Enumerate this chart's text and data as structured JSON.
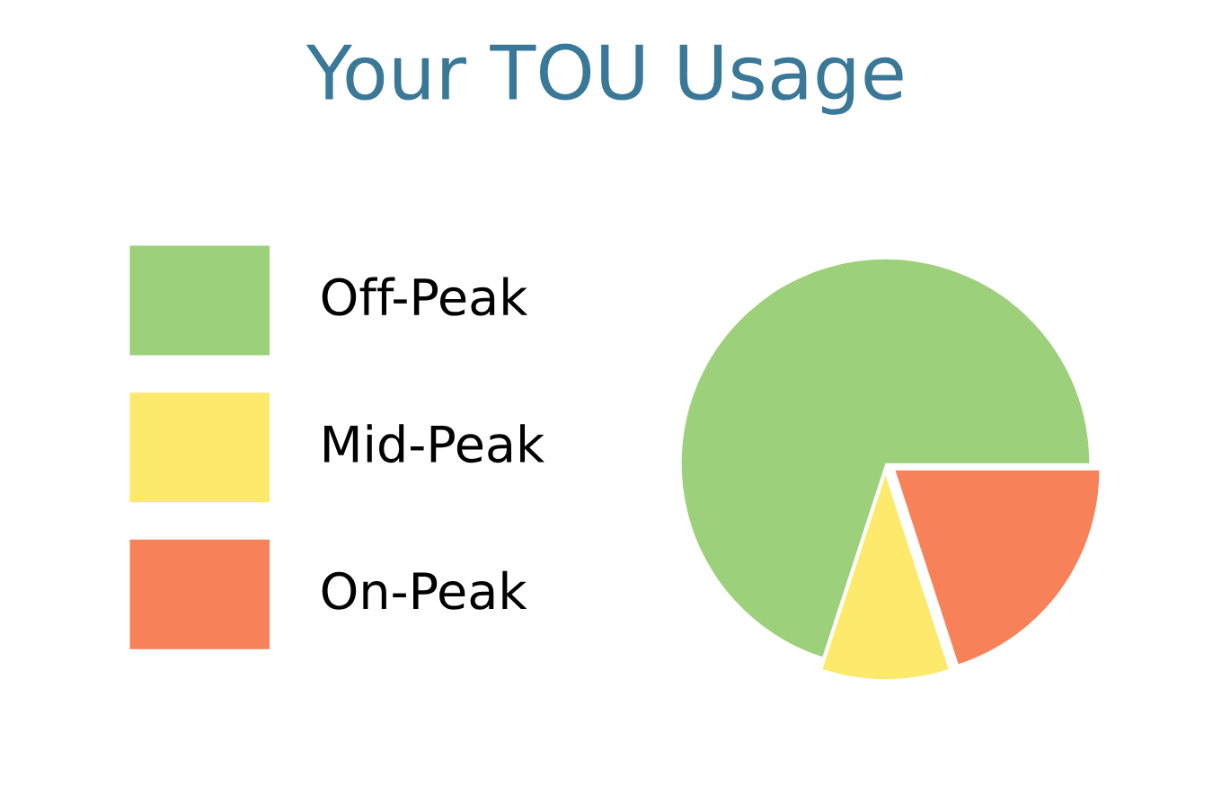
{
  "chart_data": {
    "type": "pie",
    "title": "Your TOU Usage",
    "categories": [
      "Off-Peak",
      "Mid-Peak",
      "On-Peak"
    ],
    "values": [
      70,
      10,
      20
    ],
    "colors": [
      "#9dd07a",
      "#fde96b",
      "#f78158"
    ],
    "legend": "left"
  }
}
